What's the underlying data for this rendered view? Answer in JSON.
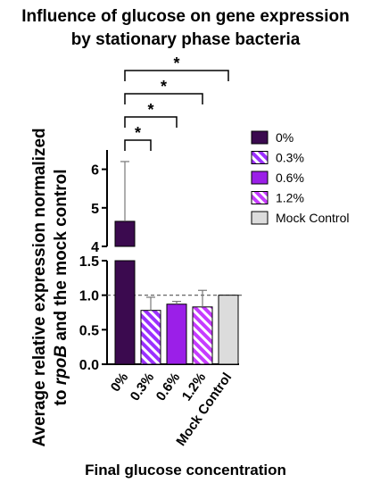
{
  "chart_data": {
    "type": "bar",
    "title": "Influence of glucose on gene expression by stationary phase bacteria",
    "title_lines": [
      "Influence of glucose on gene expression",
      "by stationary phase bacteria"
    ],
    "ylabel": "Average relative expression normalized to rpoB and the mock control",
    "ylabel_lines": [
      {
        "segments": [
          {
            "text": "Average relative expression normalized",
            "italic": false
          }
        ]
      },
      {
        "segments": [
          {
            "text": "to ",
            "italic": false
          },
          {
            "text": "rpoB",
            "italic": true
          },
          {
            "text": " and the mock control",
            "italic": false
          }
        ]
      }
    ],
    "xlabel": "Final glucose concentration",
    "categories": [
      "0%",
      "0.3%",
      "0.6%",
      "1.2%",
      "Mock Control"
    ],
    "values": [
      4.65,
      0.78,
      0.87,
      0.83,
      1.0
    ],
    "error_upper": [
      6.2,
      0.97,
      0.91,
      1.07,
      1.0
    ],
    "reference_line": 1.0,
    "axis_break": {
      "lower_segment": [
        0,
        1.5
      ],
      "upper_segment": [
        4,
        6.5
      ]
    },
    "yticks_lower": [
      "0.0",
      "0.5",
      "1.0",
      "1.5"
    ],
    "yticks_upper": [
      "4",
      "5",
      "6"
    ],
    "legend_position": "right",
    "significance": [
      {
        "from": "0%",
        "to": "0.3%",
        "label": "*"
      },
      {
        "from": "0%",
        "to": "0.6%",
        "label": "*"
      },
      {
        "from": "0%",
        "to": "1.2%",
        "label": "*"
      },
      {
        "from": "0%",
        "to": "Mock Control",
        "label": "*"
      }
    ],
    "series_styles": [
      {
        "label": "0%",
        "color": "#3b0a4f",
        "pattern": "solid"
      },
      {
        "label": "0.3%",
        "color": "#9b30ff",
        "pattern": "hatch"
      },
      {
        "label": "0.6%",
        "color": "#9b1fe8",
        "pattern": "solid"
      },
      {
        "label": "1.2%",
        "color": "#c63bff",
        "pattern": "hatch"
      },
      {
        "label": "Mock Control",
        "color": "#dcdcdc",
        "pattern": "solid"
      }
    ]
  }
}
